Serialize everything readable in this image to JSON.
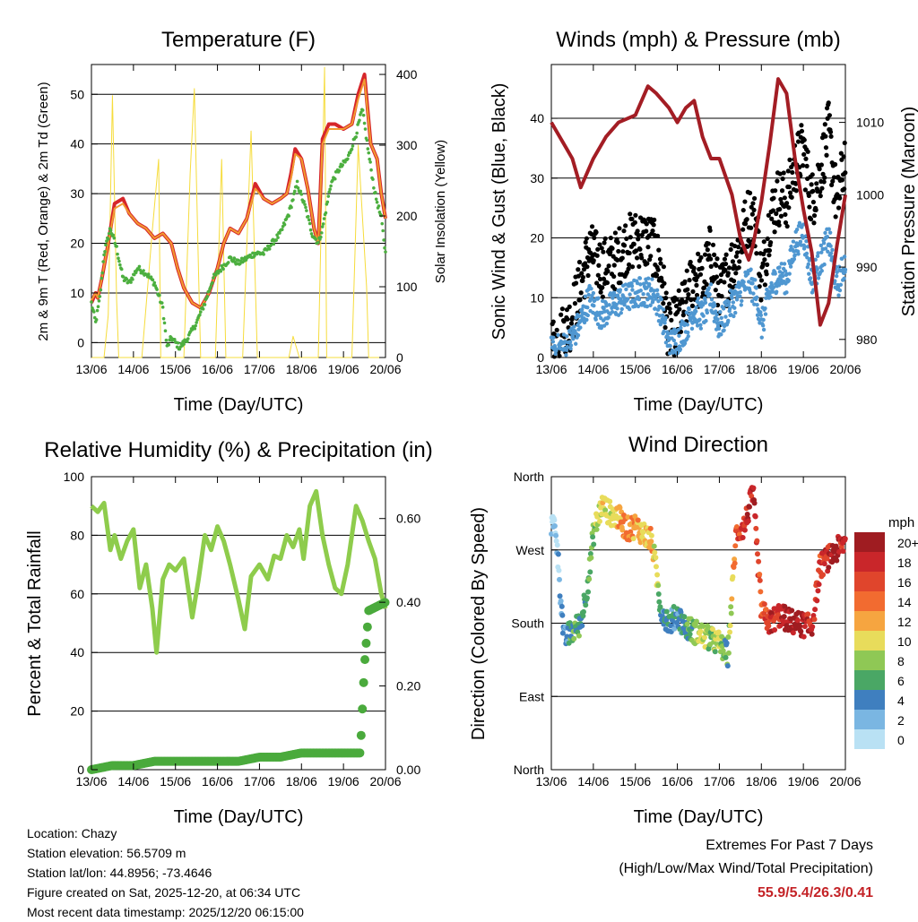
{
  "chart_data": [
    {
      "type": "line",
      "title": "Temperature (F)",
      "xlabel": "Time (Day/UTC)",
      "ylabel": "2m & 9m T (Red, Orange) & 2m Td (Green)",
      "y2label": "Solar Insolation (Yellow)",
      "categories": [
        "13/06",
        "14/06",
        "15/06",
        "16/06",
        "17/06",
        "18/06",
        "19/06",
        "20/06"
      ],
      "ylim": [
        -3,
        56
      ],
      "yticks": [
        0,
        10,
        20,
        30,
        40,
        50
      ],
      "y2lim": [
        0,
        414
      ],
      "y2ticks": [
        0,
        100,
        200,
        300,
        400
      ],
      "series": [
        {
          "name": "2m T",
          "color": "#d6262a",
          "x": [
            0,
            0.1,
            0.15,
            0.25,
            0.4,
            0.55,
            0.75,
            0.9,
            1.1,
            1.3,
            1.5,
            1.7,
            1.9,
            2.05,
            2.2,
            2.4,
            2.6,
            2.8,
            3.0,
            3.15,
            3.3,
            3.5,
            3.7,
            3.9,
            4.1,
            4.3,
            4.5,
            4.65,
            4.75,
            4.85,
            5.0,
            5.15,
            5.3,
            5.4,
            5.5,
            5.65,
            5.8,
            6.0,
            6.2,
            6.35,
            6.5,
            6.65,
            6.8,
            6.9,
            7.0
          ],
          "values": [
            8,
            10,
            9,
            13,
            20,
            28,
            29,
            26,
            24,
            23,
            21,
            22,
            20,
            15,
            11,
            8,
            7,
            10,
            15,
            20,
            23,
            22,
            25,
            32,
            29,
            28,
            29,
            30,
            34,
            39,
            37,
            31,
            23,
            20,
            41,
            44,
            44,
            43,
            44,
            50,
            54,
            40,
            37,
            30,
            25
          ]
        },
        {
          "name": "9m T",
          "color": "#f29b30",
          "x": [
            0,
            0.1,
            0.15,
            0.25,
            0.4,
            0.55,
            0.75,
            0.9,
            1.1,
            1.3,
            1.5,
            1.7,
            1.9,
            2.05,
            2.2,
            2.4,
            2.6,
            2.8,
            3.0,
            3.15,
            3.3,
            3.5,
            3.7,
            3.9,
            4.1,
            4.3,
            4.5,
            4.65,
            4.75,
            4.85,
            5.0,
            5.15,
            5.3,
            5.4,
            5.5,
            5.65,
            5.8,
            6.0,
            6.2,
            6.35,
            6.5,
            6.65,
            6.8,
            6.9,
            7.0
          ],
          "values": [
            8.5,
            10,
            9,
            13,
            20,
            27,
            28,
            26,
            24,
            23,
            21,
            22,
            20,
            15,
            11,
            8,
            7,
            10,
            15,
            20,
            23,
            22,
            25,
            31,
            29,
            28,
            29,
            30,
            33,
            38,
            37,
            31,
            23,
            20,
            40,
            43,
            43,
            43,
            44,
            49,
            53,
            40,
            37,
            30,
            25
          ]
        },
        {
          "name": "2m Td",
          "color": "#4caf3f",
          "x": [
            0,
            0.1,
            0.2,
            0.3,
            0.45,
            0.6,
            0.75,
            0.9,
            1.1,
            1.3,
            1.5,
            1.7,
            1.8,
            1.9,
            2.1,
            2.3,
            2.5,
            2.7,
            2.9,
            3.1,
            3.3,
            3.5,
            3.7,
            3.9,
            4.1,
            4.3,
            4.5,
            4.7,
            4.9,
            5.1,
            5.25,
            5.4,
            5.5,
            5.7,
            5.9,
            6.1,
            6.3,
            6.45,
            6.6,
            6.75,
            6.9,
            7.0
          ],
          "values": [
            8,
            4,
            9,
            18,
            23,
            19,
            13,
            12,
            15,
            14,
            12,
            7,
            -1,
            1,
            -1,
            1,
            4,
            8,
            13,
            15,
            17,
            16,
            17,
            18,
            18,
            20,
            22,
            26,
            32,
            27,
            22,
            20,
            23,
            32,
            35,
            37,
            42,
            47,
            38,
            30,
            25,
            18
          ]
        },
        {
          "name": "Solar",
          "color": "#f6dc3c",
          "axis": "y2",
          "x": [
            0,
            0.3,
            0.4,
            0.5,
            0.6,
            0.65,
            1.2,
            1.45,
            1.6,
            1.65,
            2.2,
            2.35,
            2.45,
            2.55,
            2.6,
            2.7,
            2.95,
            3.1,
            3.2,
            3.6,
            3.8,
            3.95,
            4.1,
            4.2,
            4.5,
            4.7,
            4.8,
            4.95,
            5.1,
            5.25,
            5.4,
            5.55,
            5.6,
            5.95,
            6.2,
            6.35,
            6.55,
            6.6,
            7.0
          ],
          "values": [
            0,
            0,
            60,
            370,
            80,
            0,
            0,
            180,
            280,
            0,
            0,
            260,
            380,
            120,
            0,
            0,
            0,
            280,
            0,
            0,
            320,
            0,
            0,
            0,
            0,
            0,
            30,
            0,
            0,
            0,
            0,
            410,
            0,
            0,
            0,
            300,
            100,
            0,
            0
          ]
        }
      ]
    },
    {
      "type": "scatter",
      "title": "Winds (mph) & Pressure (mb)",
      "xlabel": "Time (Day/UTC)",
      "ylabel": "Sonic Wind & Gust (Blue, Black)",
      "y2label": "Station Pressure (Maroon)",
      "categories": [
        "13/06",
        "14/06",
        "15/06",
        "16/06",
        "17/06",
        "18/06",
        "19/06",
        "20/06"
      ],
      "ylim": [
        0,
        49
      ],
      "yticks": [
        0,
        10,
        20,
        30,
        40
      ],
      "y2lim": [
        977.5,
        1018
      ],
      "y2ticks": [
        980,
        990,
        1000,
        1010
      ],
      "series": [
        {
          "name": "Sonic Wind",
          "color": "#4f97d1",
          "x": [
            0,
            0.4,
            0.7,
            0.9,
            1.2,
            1.5,
            1.8,
            2.1,
            2.4,
            2.6,
            2.8,
            3.0,
            3.2,
            3.4,
            3.6,
            3.8,
            4.0,
            4.2,
            4.4,
            4.5,
            4.7,
            4.9,
            5.0,
            5.2,
            5.4,
            5.6,
            5.8,
            6.0,
            6.2,
            6.4,
            6.6,
            6.8,
            7.0
          ],
          "values": [
            1,
            2,
            6,
            10,
            7,
            9,
            10,
            11,
            11,
            8,
            2,
            3,
            5,
            8,
            7,
            10,
            5,
            8,
            10,
            11,
            13,
            10,
            5,
            11,
            14,
            13,
            19,
            21,
            13,
            16,
            20,
            12,
            16
          ]
        },
        {
          "name": "Gust",
          "color": "#000000",
          "x": [
            0,
            0.4,
            0.7,
            0.9,
            1.2,
            1.5,
            1.8,
            2.1,
            2.4,
            2.6,
            2.8,
            3.0,
            3.2,
            3.4,
            3.6,
            3.8,
            4.0,
            4.2,
            4.4,
            4.5,
            4.7,
            4.9,
            5.0,
            5.2,
            5.4,
            5.6,
            5.8,
            6.0,
            6.2,
            6.4,
            6.6,
            6.8,
            7.0
          ],
          "values": [
            2,
            5,
            12,
            18,
            15,
            16,
            19,
            20,
            19,
            15,
            4,
            6,
            9,
            14,
            12,
            18,
            10,
            14,
            17,
            19,
            24,
            22,
            12,
            23,
            27,
            26,
            32,
            35,
            26,
            31,
            38,
            25,
            34
          ]
        },
        {
          "name": "Pressure",
          "color": "#a31d24",
          "axis": "y2",
          "x": [
            0,
            0.2,
            0.5,
            0.7,
            1.0,
            1.3,
            1.6,
            2.0,
            2.3,
            2.5,
            2.8,
            3.0,
            3.2,
            3.4,
            3.6,
            3.8,
            4.0,
            4.3,
            4.5,
            4.7,
            4.8,
            5.0,
            5.2,
            5.4,
            5.6,
            5.8,
            6.0,
            6.2,
            6.4,
            6.6,
            6.8,
            7.0
          ],
          "values": [
            1010,
            1008,
            1005,
            1001,
            1005,
            1008,
            1010,
            1011,
            1015,
            1014,
            1012,
            1010,
            1012,
            1013,
            1008,
            1005,
            1005,
            1000,
            994,
            991,
            993,
            999,
            1007,
            1016,
            1014,
            1005,
            998,
            992,
            982,
            985,
            993,
            1000
          ]
        }
      ]
    },
    {
      "type": "line",
      "title": "Relative Humidity (%) & Precipitation (in)",
      "xlabel": "Time (Day/UTC)",
      "ylabel": "Percent & Total Rainfall",
      "categories": [
        "13/06",
        "14/06",
        "15/06",
        "16/06",
        "17/06",
        "18/06",
        "19/06",
        "20/06"
      ],
      "ylim": [
        0,
        100
      ],
      "yticks": [
        0,
        20,
        40,
        60,
        80,
        100
      ],
      "y2lim": [
        0,
        0.7
      ],
      "y2ticks": [
        "0.00",
        "0.20",
        "0.40",
        "0.60"
      ],
      "series": [
        {
          "name": "RH",
          "color": "#8ecc4c",
          "x": [
            0,
            0.15,
            0.3,
            0.45,
            0.55,
            0.7,
            0.85,
            1.0,
            1.15,
            1.3,
            1.45,
            1.55,
            1.7,
            1.85,
            2.0,
            2.2,
            2.4,
            2.55,
            2.7,
            2.85,
            3.0,
            3.15,
            3.3,
            3.5,
            3.65,
            3.8,
            4.0,
            4.2,
            4.35,
            4.5,
            4.65,
            4.8,
            4.95,
            5.05,
            5.2,
            5.35,
            5.5,
            5.65,
            5.8,
            5.95,
            6.1,
            6.3,
            6.45,
            6.6,
            6.75,
            6.9,
            7.0
          ],
          "values": [
            90,
            88,
            91,
            75,
            80,
            72,
            78,
            82,
            62,
            70,
            55,
            40,
            65,
            70,
            68,
            72,
            52,
            65,
            80,
            75,
            83,
            78,
            70,
            58,
            48,
            66,
            70,
            65,
            73,
            72,
            80,
            76,
            82,
            72,
            90,
            95,
            80,
            70,
            62,
            60,
            70,
            90,
            85,
            78,
            72,
            60,
            55
          ]
        },
        {
          "name": "Precipitation",
          "color": "#4aaa3c",
          "axis": "y2",
          "x": [
            0,
            0.5,
            1.0,
            1.5,
            2.0,
            2.5,
            3.0,
            3.5,
            4.0,
            4.5,
            5.0,
            5.5,
            6.0,
            6.4,
            6.5,
            6.6,
            6.8,
            7.0
          ],
          "values": [
            0,
            0.01,
            0.01,
            0.02,
            0.02,
            0.02,
            0.02,
            0.02,
            0.03,
            0.03,
            0.04,
            0.04,
            0.04,
            0.04,
            0.25,
            0.38,
            0.39,
            0.4
          ]
        }
      ]
    },
    {
      "type": "scatter",
      "title": "Wind Direction",
      "xlabel": "Time (Day/UTC)",
      "ylabel": "Direction (Colored By Speed)",
      "categories": [
        "13/06",
        "14/06",
        "15/06",
        "16/06",
        "17/06",
        "18/06",
        "19/06",
        "20/06"
      ],
      "ylim": [
        0,
        360
      ],
      "ytick_labels": [
        "North",
        "East",
        "South",
        "West",
        "North"
      ],
      "ytick_values": [
        0,
        90,
        180,
        270,
        360
      ],
      "colorbar": {
        "title": "mph",
        "labels": [
          "20+",
          "18",
          "16",
          "14",
          "12",
          "10",
          "8",
          "6",
          "4",
          "2",
          "0"
        ],
        "colors": [
          "#9f1c21",
          "#c9262a",
          "#e0452c",
          "#f26b30",
          "#f6a540",
          "#e8dc5b",
          "#8fc855",
          "#4aa765",
          "#3f7fbf",
          "#7ab6e2",
          "#b9e1f4"
        ]
      },
      "series": [
        {
          "name": "Direction",
          "x": [
            0.1,
            0.3,
            0.5,
            0.7,
            0.9,
            1.0,
            1.2,
            1.4,
            1.6,
            1.8,
            2.0,
            2.2,
            2.4,
            2.6,
            2.8,
            3.0,
            3.2,
            3.4,
            3.6,
            3.8,
            4.0,
            4.2,
            4.4,
            4.6,
            4.8,
            5.0,
            5.2,
            5.4,
            5.6,
            5.8,
            6.0,
            6.2,
            6.4,
            6.6,
            6.8,
            7.0
          ],
          "values": [
            300,
            160,
            170,
            180,
            240,
            290,
            325,
            315,
            310,
            295,
            300,
            290,
            280,
            200,
            180,
            190,
            175,
            170,
            165,
            160,
            155,
            140,
            290,
            300,
            340,
            195,
            180,
            190,
            185,
            180,
            178,
            175,
            250,
            260,
            270,
            280
          ],
          "speeds": [
            1,
            3,
            6,
            5,
            6,
            7,
            10,
            9,
            12,
            13,
            12,
            11,
            12,
            5,
            4,
            4,
            5,
            7,
            10,
            8,
            9,
            6,
            15,
            17,
            19,
            15,
            18,
            17,
            19,
            20,
            19,
            18,
            16,
            18,
            20,
            17
          ]
        }
      ]
    }
  ],
  "info": {
    "location": "Location: Chazy",
    "elevation": "Station elevation: 56.5709 m",
    "latlon": "Station lat/lon: 44.8956; -73.4646",
    "created": "Figure created on Sat, 2025-12-20, at 06:34 UTC",
    "recent": "Most recent data timestamp: 2025/12/20 06:15:00"
  },
  "extremes": {
    "title": "Extremes For Past 7 Days",
    "subtitle": "(High/Low/Max Wind/Total Precipitation)",
    "values": "55.9/5.4/26.3/0.41"
  }
}
